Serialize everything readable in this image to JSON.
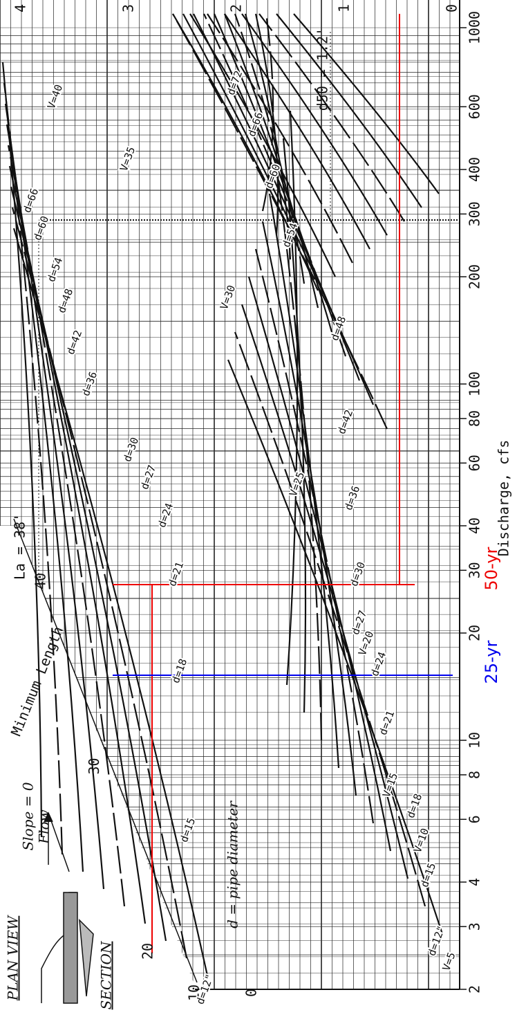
{
  "plan_view": "PLAN VIEW",
  "section": "SECTION",
  "slope": "Slope = 0",
  "flow": "Flow",
  "pipe_note": "d = pipe diameter",
  "min_length": {
    "label": "Minimum Length",
    "ticks": [
      20,
      30,
      40
    ],
    "la": "La = 38'"
  },
  "d50_axis": {
    "ticks": [
      0,
      1,
      2,
      3,
      4
    ],
    "d50": "d50 = 1.2'"
  },
  "tailwater_axis": {
    "ticks": [
      0,
      10
    ]
  },
  "discharge_axis": {
    "label": "Discharge, cfs",
    "ticks": [
      2,
      3,
      4,
      6,
      8,
      10,
      20,
      30,
      40,
      60,
      80,
      100,
      200,
      300,
      400,
      600,
      1000
    ]
  },
  "events": [
    "25-yr",
    "50-yr"
  ],
  "curve_labels": [
    "d=12\"",
    "d=15",
    "d=18",
    "d=21",
    "d=24",
    "d=27",
    "d=30",
    "d=36",
    "d=42",
    "d=48",
    "d=54",
    "d=60",
    "d=66",
    "d=12\"",
    "d=15",
    "d=18",
    "d=21",
    "d=24",
    "d=27",
    "d=30",
    "d=36",
    "d=42",
    "d=48",
    "d=54",
    "d=60",
    "d=66",
    "d=72",
    "V=5",
    "V=10",
    "V=15",
    "V=20",
    "V=25",
    "V=30",
    "V=35",
    "V=40"
  ]
}
